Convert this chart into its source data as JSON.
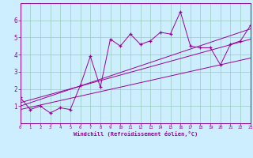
{
  "title": "",
  "xlabel": "Windchill (Refroidissement éolien,°C)",
  "ylabel": "",
  "bg_color": "#cceeff",
  "line_color": "#990099",
  "grid_color": "#99ccbb",
  "xlim": [
    0,
    23
  ],
  "ylim": [
    0,
    7
  ],
  "xticks": [
    0,
    1,
    2,
    3,
    4,
    5,
    6,
    7,
    8,
    9,
    10,
    11,
    12,
    13,
    14,
    15,
    16,
    17,
    18,
    19,
    20,
    21,
    22,
    23
  ],
  "yticks": [
    1,
    2,
    3,
    4,
    5,
    6
  ],
  "series1_x": [
    0,
    1,
    2,
    3,
    4,
    5,
    6,
    7,
    8,
    9,
    10,
    11,
    12,
    13,
    14,
    15,
    16,
    17,
    18,
    19,
    20,
    21,
    22,
    23
  ],
  "series1_y": [
    1.5,
    0.8,
    1.0,
    0.6,
    0.9,
    0.8,
    2.2,
    3.9,
    2.1,
    4.9,
    4.5,
    5.2,
    4.6,
    4.8,
    5.3,
    5.2,
    6.5,
    4.5,
    4.4,
    4.4,
    3.4,
    4.6,
    4.8,
    5.7
  ],
  "series2_x": [
    0,
    23
  ],
  "series2_y": [
    1.0,
    5.5
  ],
  "series3_x": [
    0,
    23
  ],
  "series3_y": [
    0.8,
    3.8
  ],
  "series4_x": [
    0,
    23
  ],
  "series4_y": [
    1.2,
    4.9
  ]
}
